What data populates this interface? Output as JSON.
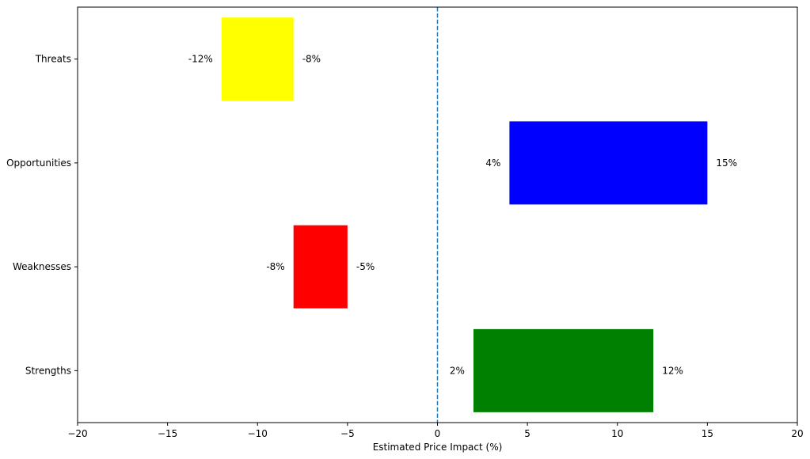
{
  "chart_data": {
    "type": "bar",
    "orientation": "horizontal-range",
    "title": "",
    "xlabel": "Estimated Price Impact (%)",
    "ylabel": "",
    "xlim": [
      -20,
      20
    ],
    "xticks": [
      "−20",
      "−15",
      "−10",
      "−5",
      "0",
      "5",
      "10",
      "15",
      "20"
    ],
    "xtick_values": [
      -20,
      -15,
      -10,
      -5,
      0,
      5,
      10,
      15,
      20
    ],
    "categories": [
      "Strengths",
      "Weaknesses",
      "Opportunities",
      "Threats"
    ],
    "series": [
      {
        "name": "Strengths",
        "low": 2,
        "high": 12,
        "low_label": "2%",
        "high_label": "12%",
        "color": "#008000"
      },
      {
        "name": "Weaknesses",
        "low": -8,
        "high": -5,
        "low_label": "-8%",
        "high_label": "-5%",
        "color": "#ff0000"
      },
      {
        "name": "Opportunities",
        "low": 4,
        "high": 15,
        "low_label": "4%",
        "high_label": "15%",
        "color": "#0000ff"
      },
      {
        "name": "Threats",
        "low": -12,
        "high": -8,
        "low_label": "-12%",
        "high_label": "-8%",
        "color": "#ffff00"
      }
    ],
    "reference_line": {
      "x": 0,
      "style": "dashed",
      "color": "#1f77b4"
    },
    "grid": false,
    "legend": "none"
  }
}
